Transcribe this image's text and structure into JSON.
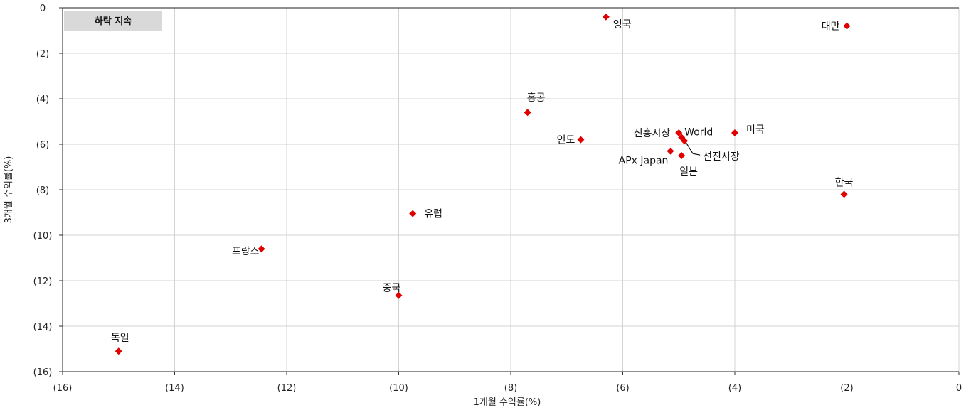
{
  "chart_data": {
    "type": "scatter",
    "xlabel": "1개월 수익률(%)",
    "ylabel": "3개월 수익률(%)",
    "xlim": [
      -16,
      0
    ],
    "ylim": [
      -16,
      0
    ],
    "x_ticks": [
      "(16)",
      "(14)",
      "(12)",
      "(10)",
      "(8)",
      "(6)",
      "(4)",
      "(2)",
      "0"
    ],
    "y_ticks": [
      "0",
      "(2)",
      "(4)",
      "(6)",
      "(8)",
      "(10)",
      "(12)",
      "(14)",
      "(16)"
    ],
    "grid": true,
    "marker_color": "#e00000",
    "annotation": "하락 지속",
    "points": [
      {
        "label": "영국",
        "x": -6.3,
        "y": -0.4
      },
      {
        "label": "대만",
        "x": -2.0,
        "y": -0.8
      },
      {
        "label": "홍콩",
        "x": -7.7,
        "y": -4.6
      },
      {
        "label": "인도",
        "x": -6.75,
        "y": -5.8
      },
      {
        "label": "신흥시장",
        "x": -5.0,
        "y": -5.5
      },
      {
        "label": "World",
        "x": -4.95,
        "y": -5.7
      },
      {
        "label": "미국",
        "x": -4.0,
        "y": -5.5
      },
      {
        "label": "선진시장",
        "x": -4.9,
        "y": -5.85
      },
      {
        "label": "APx Japan",
        "x": -5.15,
        "y": -6.3
      },
      {
        "label": "일본",
        "x": -4.95,
        "y": -6.5
      },
      {
        "label": "한국",
        "x": -2.05,
        "y": -8.2
      },
      {
        "label": "유럽",
        "x": -9.75,
        "y": -9.05
      },
      {
        "label": "프랑스",
        "x": -12.45,
        "y": -10.6
      },
      {
        "label": "중국",
        "x": -10.0,
        "y": -12.65
      },
      {
        "label": "독일",
        "x": -15.0,
        "y": -15.1
      }
    ]
  }
}
